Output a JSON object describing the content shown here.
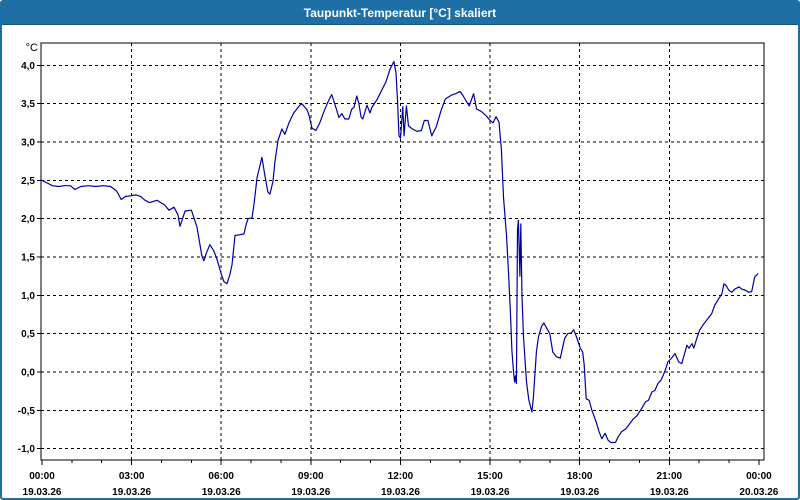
{
  "window": {
    "title": "Taupunkt-Temperatur [°C] skaliert"
  },
  "colors": {
    "titlebar_bg": "#1d6fa5",
    "window_border": "#1d6fa5",
    "title_text": "#ffffff",
    "line": "#0000a0",
    "axis": "#000000",
    "grid": "#000000",
    "background": "#ffffff"
  },
  "axes": {
    "y": {
      "unit": "°C",
      "tick_values": [
        4.0,
        3.5,
        3.0,
        2.5,
        2.0,
        1.5,
        1.0,
        0.5,
        0.0,
        -0.5,
        -1.0
      ],
      "tick_labels": [
        "4,0",
        "3,5",
        "3,0",
        "2,5",
        "2,0",
        "1,5",
        "1,0",
        "0,5",
        "0,0",
        "-0,5",
        "-1,0"
      ]
    },
    "x": {
      "major_tick_hours": [
        0,
        3,
        6,
        9,
        12,
        15,
        18,
        21,
        24
      ],
      "time_labels": [
        "00:00",
        "03:00",
        "06:00",
        "09:00",
        "12:00",
        "15:00",
        "18:00",
        "21:00",
        "00:00"
      ],
      "date_labels": [
        "19.03.26",
        "19.03.26",
        "19.03.26",
        "19.03.26",
        "19.03.26",
        "19.03.26",
        "19.03.26",
        "19.03.26",
        "20.03.26"
      ],
      "minor_tick_every_hours": 1,
      "gridline_hours": [
        3,
        6,
        9,
        12,
        15,
        18,
        21
      ]
    }
  },
  "chart_data": {
    "type": "line",
    "title": "Taupunkt-Temperatur [°C] skaliert",
    "xlabel": "",
    "ylabel": "°C",
    "x_unit": "hours since 19.03.26 00:00",
    "xlim": [
      0,
      24.2
    ],
    "ylim": [
      -1.15,
      4.29
    ],
    "grid": "dashed",
    "legend": "none",
    "series": [
      {
        "name": "Taupunkt-Temperatur",
        "color": "#0000a0",
        "points": [
          [
            0.0,
            2.5
          ],
          [
            0.15,
            2.47
          ],
          [
            0.35,
            2.43
          ],
          [
            0.55,
            2.42
          ],
          [
            0.75,
            2.43
          ],
          [
            0.95,
            2.43
          ],
          [
            1.1,
            2.38
          ],
          [
            1.3,
            2.42
          ],
          [
            1.55,
            2.43
          ],
          [
            1.8,
            2.42
          ],
          [
            2.05,
            2.43
          ],
          [
            2.3,
            2.42
          ],
          [
            2.5,
            2.36
          ],
          [
            2.65,
            2.25
          ],
          [
            2.8,
            2.29
          ],
          [
            3.0,
            2.3
          ],
          [
            3.15,
            2.31
          ],
          [
            3.3,
            2.29
          ],
          [
            3.45,
            2.24
          ],
          [
            3.6,
            2.21
          ],
          [
            3.85,
            2.24
          ],
          [
            4.1,
            2.18
          ],
          [
            4.25,
            2.11
          ],
          [
            4.42,
            2.15
          ],
          [
            4.55,
            2.05
          ],
          [
            4.62,
            1.9
          ],
          [
            4.79,
            2.1
          ],
          [
            5.0,
            2.11
          ],
          [
            5.19,
            1.89
          ],
          [
            5.35,
            1.52
          ],
          [
            5.42,
            1.45
          ],
          [
            5.5,
            1.55
          ],
          [
            5.62,
            1.66
          ],
          [
            5.75,
            1.58
          ],
          [
            5.86,
            1.47
          ],
          [
            6.0,
            1.28
          ],
          [
            6.09,
            1.18
          ],
          [
            6.19,
            1.15
          ],
          [
            6.29,
            1.27
          ],
          [
            6.36,
            1.4
          ],
          [
            6.46,
            1.78
          ],
          [
            6.6,
            1.79
          ],
          [
            6.76,
            1.8
          ],
          [
            6.84,
            1.93
          ],
          [
            6.9,
            2.0
          ],
          [
            7.03,
            2.01
          ],
          [
            7.1,
            2.2
          ],
          [
            7.2,
            2.54
          ],
          [
            7.3,
            2.7
          ],
          [
            7.36,
            2.8
          ],
          [
            7.46,
            2.57
          ],
          [
            7.56,
            2.35
          ],
          [
            7.63,
            2.32
          ],
          [
            7.73,
            2.48
          ],
          [
            7.8,
            2.75
          ],
          [
            7.9,
            3.02
          ],
          [
            8.03,
            3.17
          ],
          [
            8.13,
            3.1
          ],
          [
            8.27,
            3.25
          ],
          [
            8.43,
            3.38
          ],
          [
            8.63,
            3.48
          ],
          [
            8.7,
            3.5
          ],
          [
            8.87,
            3.42
          ],
          [
            8.94,
            3.35
          ],
          [
            9.04,
            3.18
          ],
          [
            9.17,
            3.15
          ],
          [
            9.3,
            3.25
          ],
          [
            9.44,
            3.4
          ],
          [
            9.57,
            3.52
          ],
          [
            9.7,
            3.62
          ],
          [
            9.84,
            3.45
          ],
          [
            9.94,
            3.32
          ],
          [
            10.04,
            3.37
          ],
          [
            10.14,
            3.3
          ],
          [
            10.27,
            3.3
          ],
          [
            10.37,
            3.43
          ],
          [
            10.44,
            3.45
          ],
          [
            10.54,
            3.6
          ],
          [
            10.61,
            3.5
          ],
          [
            10.68,
            3.33
          ],
          [
            10.74,
            3.3
          ],
          [
            10.88,
            3.48
          ],
          [
            10.98,
            3.38
          ],
          [
            11.04,
            3.45
          ],
          [
            11.21,
            3.55
          ],
          [
            11.38,
            3.68
          ],
          [
            11.51,
            3.78
          ],
          [
            11.65,
            3.95
          ],
          [
            11.78,
            4.05
          ],
          [
            11.85,
            3.9
          ],
          [
            11.9,
            3.55
          ],
          [
            11.95,
            3.08
          ],
          [
            12.0,
            3.05
          ],
          [
            12.08,
            3.46
          ],
          [
            12.12,
            3.08
          ],
          [
            12.2,
            3.47
          ],
          [
            12.27,
            3.21
          ],
          [
            12.4,
            3.17
          ],
          [
            12.55,
            3.14
          ],
          [
            12.7,
            3.15
          ],
          [
            12.8,
            3.28
          ],
          [
            12.92,
            3.28
          ],
          [
            13.05,
            3.08
          ],
          [
            13.2,
            3.2
          ],
          [
            13.35,
            3.4
          ],
          [
            13.5,
            3.56
          ],
          [
            13.7,
            3.61
          ],
          [
            13.85,
            3.63
          ],
          [
            14.0,
            3.66
          ],
          [
            14.1,
            3.6
          ],
          [
            14.3,
            3.47
          ],
          [
            14.45,
            3.63
          ],
          [
            14.55,
            3.43
          ],
          [
            14.7,
            3.4
          ],
          [
            14.85,
            3.35
          ],
          [
            15.0,
            3.28
          ],
          [
            15.1,
            3.25
          ],
          [
            15.2,
            3.33
          ],
          [
            15.3,
            3.26
          ],
          [
            15.38,
            2.9
          ],
          [
            15.45,
            2.28
          ],
          [
            15.55,
            1.78
          ],
          [
            15.62,
            1.28
          ],
          [
            15.68,
            0.78
          ],
          [
            15.73,
            0.28
          ],
          [
            15.78,
            0.02
          ],
          [
            15.82,
            -0.13
          ],
          [
            15.85,
            -0.05
          ],
          [
            15.88,
            -0.15
          ],
          [
            15.92,
            1.85
          ],
          [
            15.95,
            1.98
          ],
          [
            16.0,
            1.25
          ],
          [
            16.03,
            1.93
          ],
          [
            16.07,
            0.98
          ],
          [
            16.12,
            0.46
          ],
          [
            16.17,
            0.16
          ],
          [
            16.22,
            -0.13
          ],
          [
            16.3,
            -0.37
          ],
          [
            16.4,
            -0.52
          ],
          [
            16.45,
            -0.33
          ],
          [
            16.5,
            -0.03
          ],
          [
            16.55,
            0.26
          ],
          [
            16.62,
            0.46
          ],
          [
            16.72,
            0.59
          ],
          [
            16.8,
            0.64
          ],
          [
            16.9,
            0.57
          ],
          [
            17.0,
            0.5
          ],
          [
            17.1,
            0.26
          ],
          [
            17.22,
            0.2
          ],
          [
            17.35,
            0.18
          ],
          [
            17.5,
            0.44
          ],
          [
            17.6,
            0.5
          ],
          [
            17.72,
            0.51
          ],
          [
            17.8,
            0.55
          ],
          [
            17.9,
            0.45
          ],
          [
            18.02,
            0.31
          ],
          [
            18.1,
            0.26
          ],
          [
            18.15,
            0.09
          ],
          [
            18.22,
            -0.35
          ],
          [
            18.32,
            -0.37
          ],
          [
            18.41,
            -0.5
          ],
          [
            18.55,
            -0.65
          ],
          [
            18.65,
            -0.78
          ],
          [
            18.74,
            -0.87
          ],
          [
            18.85,
            -0.8
          ],
          [
            18.95,
            -0.89
          ],
          [
            19.05,
            -0.92
          ],
          [
            19.2,
            -0.92
          ],
          [
            19.28,
            -0.85
          ],
          [
            19.4,
            -0.78
          ],
          [
            19.55,
            -0.74
          ],
          [
            19.68,
            -0.67
          ],
          [
            19.8,
            -0.61
          ],
          [
            19.92,
            -0.57
          ],
          [
            20.0,
            -0.52
          ],
          [
            20.1,
            -0.46
          ],
          [
            20.2,
            -0.39
          ],
          [
            20.3,
            -0.37
          ],
          [
            20.42,
            -0.26
          ],
          [
            20.52,
            -0.24
          ],
          [
            20.62,
            -0.15
          ],
          [
            20.72,
            -0.11
          ],
          [
            20.8,
            -0.04
          ],
          [
            20.88,
            0.04
          ],
          [
            20.95,
            0.13
          ],
          [
            21.05,
            0.17
          ],
          [
            21.19,
            0.24
          ],
          [
            21.32,
            0.13
          ],
          [
            21.42,
            0.11
          ],
          [
            21.59,
            0.35
          ],
          [
            21.66,
            0.31
          ],
          [
            21.76,
            0.37
          ],
          [
            21.82,
            0.31
          ],
          [
            21.92,
            0.44
          ],
          [
            22.02,
            0.55
          ],
          [
            22.16,
            0.63
          ],
          [
            22.26,
            0.68
          ],
          [
            22.42,
            0.76
          ],
          [
            22.52,
            0.87
          ],
          [
            22.66,
            0.96
          ],
          [
            22.76,
            1.02
          ],
          [
            22.83,
            1.15
          ],
          [
            22.9,
            1.13
          ],
          [
            22.99,
            1.07
          ],
          [
            23.09,
            1.04
          ],
          [
            23.19,
            1.08
          ],
          [
            23.33,
            1.11
          ],
          [
            23.43,
            1.08
          ],
          [
            23.53,
            1.07
          ],
          [
            23.66,
            1.04
          ],
          [
            23.76,
            1.05
          ],
          [
            23.86,
            1.24
          ],
          [
            23.96,
            1.28
          ]
        ]
      }
    ]
  }
}
